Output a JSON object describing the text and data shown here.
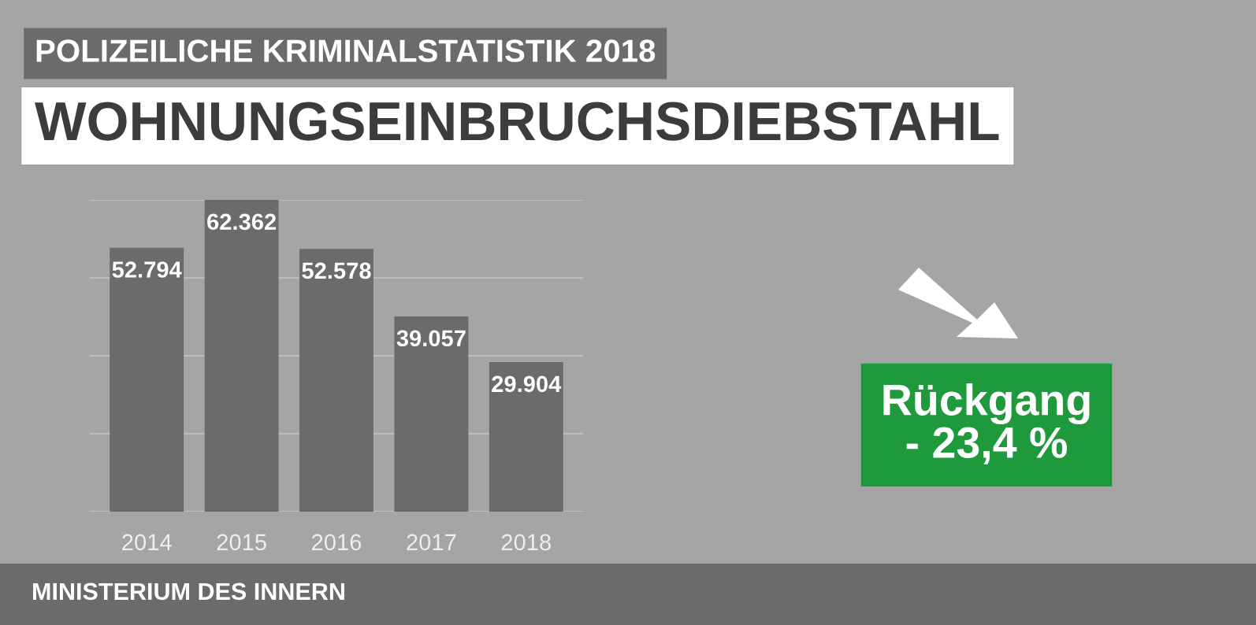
{
  "chart_data": {
    "type": "bar",
    "title": "POLIZEILICHE KRIMINALSTATISTIK 2018",
    "subtitle": "WOHNUNGSEINBRUCHSDIEBSTAHL",
    "categories": [
      "2014",
      "2015",
      "2016",
      "2017",
      "2018"
    ],
    "values": [
      52794,
      62362,
      52578,
      39057,
      29904
    ],
    "value_labels": [
      "52.794",
      "62.362",
      "52.578",
      "39.057",
      "29.904"
    ],
    "color": "#6b6b6b",
    "ylim": [
      0,
      62362
    ],
    "yticks": [
      {
        "value": 0,
        "label": null
      },
      {
        "value": 15590.5,
        "label": null
      },
      {
        "value": 31181,
        "label": null
      },
      {
        "value": 46771.5,
        "label": null
      },
      {
        "value": 62362,
        "label": null
      }
    ],
    "grid": "y",
    "annotations": [
      "Rückgang\n- 23,4 %",
      "MINISTERIUM DES INNERN"
    ]
  }
}
